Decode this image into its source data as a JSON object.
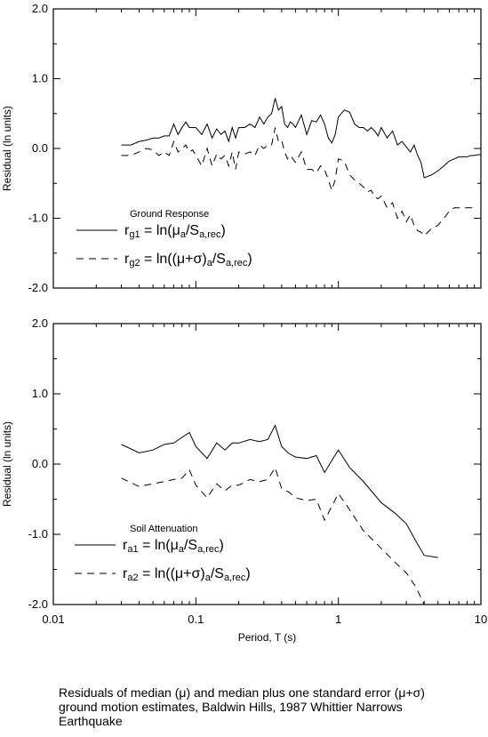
{
  "caption": {
    "line1": "Residuals of median (μ) and median plus one standard error (μ+σ)",
    "line2": "ground motion estimates, Baldwin Hills, 1987 Whittier Narrows",
    "line3": "Earthquake"
  },
  "chart_data": [
    {
      "type": "line",
      "title": "Ground Response",
      "xlabel": "",
      "ylabel": "Residual (ln units)",
      "xscale": "log",
      "xlim": [
        0.01,
        10
      ],
      "ylim": [
        -2.0,
        2.0
      ],
      "xticks": [],
      "yticks": [
        "-2.0",
        "-1.0",
        "0.0",
        "1.0",
        "2.0"
      ],
      "legend_position": "bottom-left",
      "series": [
        {
          "name": "r_g1 = ln(μ_a/S_a,rec)",
          "legend": {
            "r": "r",
            "sub1": "g1",
            "eq": " = ln(μ",
            "sub2": "a",
            "mid": "/S",
            "sub3": "a,rec",
            "end": ")"
          },
          "style": "solid",
          "x": [
            0.03,
            0.035,
            0.04,
            0.045,
            0.05,
            0.055,
            0.06,
            0.065,
            0.07,
            0.075,
            0.08,
            0.085,
            0.09,
            0.095,
            0.1,
            0.11,
            0.12,
            0.13,
            0.14,
            0.15,
            0.16,
            0.17,
            0.18,
            0.19,
            0.2,
            0.22,
            0.24,
            0.26,
            0.28,
            0.3,
            0.32,
            0.34,
            0.36,
            0.38,
            0.4,
            0.42,
            0.44,
            0.46,
            0.48,
            0.5,
            0.55,
            0.6,
            0.65,
            0.7,
            0.75,
            0.8,
            0.85,
            0.9,
            0.95,
            1.0,
            1.1,
            1.2,
            1.3,
            1.4,
            1.5,
            1.6,
            1.7,
            1.8,
            1.9,
            2.0,
            2.2,
            2.4,
            2.6,
            2.8,
            3.0,
            3.2,
            3.4,
            3.6,
            3.8,
            4.0,
            4.5,
            5.0,
            5.5,
            6.0,
            6.5,
            7.0,
            7.5,
            8.0,
            8.5,
            9.0,
            9.5,
            10.0
          ],
          "y": [
            0.05,
            0.05,
            0.1,
            0.12,
            0.15,
            0.15,
            0.18,
            0.18,
            0.35,
            0.2,
            0.3,
            0.38,
            0.3,
            0.3,
            0.3,
            0.2,
            0.35,
            0.15,
            0.28,
            0.2,
            0.25,
            0.1,
            0.3,
            0.15,
            0.3,
            0.3,
            0.35,
            0.3,
            0.45,
            0.35,
            0.45,
            0.5,
            0.72,
            0.55,
            0.6,
            0.35,
            0.3,
            0.38,
            0.35,
            0.3,
            0.48,
            0.2,
            0.4,
            0.38,
            0.48,
            0.35,
            0.15,
            0.08,
            0.2,
            0.45,
            0.55,
            0.52,
            0.35,
            0.3,
            0.3,
            0.25,
            0.3,
            0.25,
            0.18,
            0.3,
            0.15,
            0.25,
            0.05,
            0.1,
            0.02,
            -0.05,
            0.05,
            -0.1,
            -0.2,
            -0.42,
            -0.38,
            -0.32,
            -0.25,
            -0.18,
            -0.15,
            -0.12,
            -0.12,
            -0.12,
            -0.1,
            -0.1,
            -0.09,
            -0.09
          ]
        },
        {
          "name": "r_g2 = ln((μ+σ)_a/S_a,rec)",
          "legend": {
            "r": "r",
            "sub1": "g2",
            "eq": " = ln((μ+σ)",
            "sub2": "a",
            "mid": "/S",
            "sub3": "a,rec",
            "end": ")"
          },
          "style": "dashed",
          "x": [
            0.03,
            0.035,
            0.04,
            0.045,
            0.05,
            0.055,
            0.06,
            0.065,
            0.07,
            0.075,
            0.08,
            0.085,
            0.09,
            0.095,
            0.1,
            0.11,
            0.12,
            0.13,
            0.14,
            0.15,
            0.16,
            0.17,
            0.18,
            0.19,
            0.2,
            0.22,
            0.24,
            0.26,
            0.28,
            0.3,
            0.32,
            0.34,
            0.36,
            0.38,
            0.4,
            0.42,
            0.44,
            0.46,
            0.48,
            0.5,
            0.55,
            0.6,
            0.65,
            0.7,
            0.75,
            0.8,
            0.85,
            0.9,
            0.95,
            1.0,
            1.1,
            1.2,
            1.3,
            1.4,
            1.5,
            1.6,
            1.7,
            1.8,
            1.9,
            2.0,
            2.2,
            2.4,
            2.6,
            2.8,
            3.0,
            3.2,
            3.4,
            3.6,
            3.8,
            4.0,
            4.5,
            5.0,
            5.5,
            6.0,
            6.5,
            7.0,
            7.5,
            8.0,
            8.5,
            9.0
          ],
          "y": [
            -0.1,
            -0.1,
            -0.05,
            0.0,
            -0.02,
            -0.1,
            -0.05,
            -0.1,
            0.1,
            -0.05,
            0.0,
            0.05,
            -0.05,
            -0.02,
            -0.1,
            -0.25,
            0.0,
            -0.25,
            -0.08,
            -0.15,
            -0.1,
            -0.25,
            -0.05,
            -0.3,
            -0.05,
            -0.08,
            -0.05,
            -0.1,
            0.05,
            0.0,
            0.05,
            0.05,
            0.3,
            0.1,
            0.12,
            -0.05,
            -0.15,
            -0.1,
            -0.15,
            -0.2,
            -0.05,
            -0.3,
            -0.3,
            -0.35,
            -0.25,
            -0.3,
            -0.45,
            -0.6,
            -0.45,
            -0.15,
            -0.18,
            -0.38,
            -0.45,
            -0.5,
            -0.55,
            -0.62,
            -0.6,
            -0.7,
            -0.72,
            -0.68,
            -0.85,
            -0.78,
            -1.0,
            -0.9,
            -1.05,
            -0.95,
            -1.1,
            -1.18,
            -1.2,
            -1.25,
            -1.15,
            -1.1,
            -1.0,
            -0.9,
            -0.85,
            -0.85,
            -0.85,
            -0.85,
            -0.85,
            -0.85
          ]
        }
      ]
    },
    {
      "type": "line",
      "title": "Soil Attenuation",
      "xlabel": "Period, T (s)",
      "ylabel": "Residual (ln units)",
      "xscale": "log",
      "xlim": [
        0.01,
        10
      ],
      "ylim": [
        -2.0,
        2.0
      ],
      "xticks": [
        "0.01",
        "0.1",
        "1",
        "10"
      ],
      "yticks": [
        "-2.0",
        "-1.0",
        "0.0",
        "1.0",
        "2.0"
      ],
      "legend_position": "bottom-left",
      "series": [
        {
          "name": "r_a1 = ln(μ_a/S_a,rec)",
          "legend": {
            "r": "r",
            "sub1": "a1",
            "eq": " = ln(μ",
            "sub2": "a",
            "mid": "/S",
            "sub3": "a,rec",
            "end": ")"
          },
          "style": "solid",
          "x": [
            0.03,
            0.04,
            0.05,
            0.06,
            0.07,
            0.08,
            0.09,
            0.1,
            0.12,
            0.14,
            0.16,
            0.18,
            0.2,
            0.24,
            0.28,
            0.32,
            0.36,
            0.4,
            0.45,
            0.5,
            0.6,
            0.7,
            0.8,
            0.9,
            1.0,
            1.2,
            1.5,
            2.0,
            2.5,
            3.0,
            3.5,
            4.0,
            5.0
          ],
          "y": [
            0.28,
            0.16,
            0.2,
            0.28,
            0.3,
            0.38,
            0.45,
            0.25,
            0.08,
            0.3,
            0.2,
            0.3,
            0.3,
            0.35,
            0.32,
            0.35,
            0.55,
            0.25,
            0.15,
            0.1,
            0.08,
            0.12,
            -0.12,
            0.05,
            0.2,
            -0.05,
            -0.25,
            -0.55,
            -0.7,
            -0.85,
            -1.1,
            -1.3,
            -1.33
          ]
        },
        {
          "name": "r_a2 = ln((μ+σ)_a/S_a,rec)",
          "legend": {
            "r": "r",
            "sub1": "a2",
            "eq": " = ln((μ+σ)",
            "sub2": "a",
            "mid": "/S",
            "sub3": "a,rec",
            "end": ")"
          },
          "style": "dashed",
          "x": [
            0.03,
            0.04,
            0.05,
            0.06,
            0.07,
            0.08,
            0.09,
            0.1,
            0.12,
            0.14,
            0.16,
            0.18,
            0.2,
            0.24,
            0.28,
            0.32,
            0.36,
            0.4,
            0.45,
            0.5,
            0.6,
            0.7,
            0.8,
            0.9,
            1.0,
            1.2,
            1.5,
            2.0,
            2.5,
            3.0,
            3.5,
            4.0,
            5.0
          ],
          "y": [
            -0.2,
            -0.32,
            -0.28,
            -0.25,
            -0.22,
            -0.2,
            -0.08,
            -0.3,
            -0.48,
            -0.28,
            -0.38,
            -0.3,
            -0.3,
            -0.22,
            -0.25,
            -0.22,
            -0.05,
            -0.35,
            -0.4,
            -0.48,
            -0.52,
            -0.5,
            -0.8,
            -0.6,
            -0.42,
            -0.65,
            -0.95,
            -1.2,
            -1.4,
            -1.55,
            -1.75,
            -2.0,
            -2.1
          ]
        }
      ]
    }
  ]
}
